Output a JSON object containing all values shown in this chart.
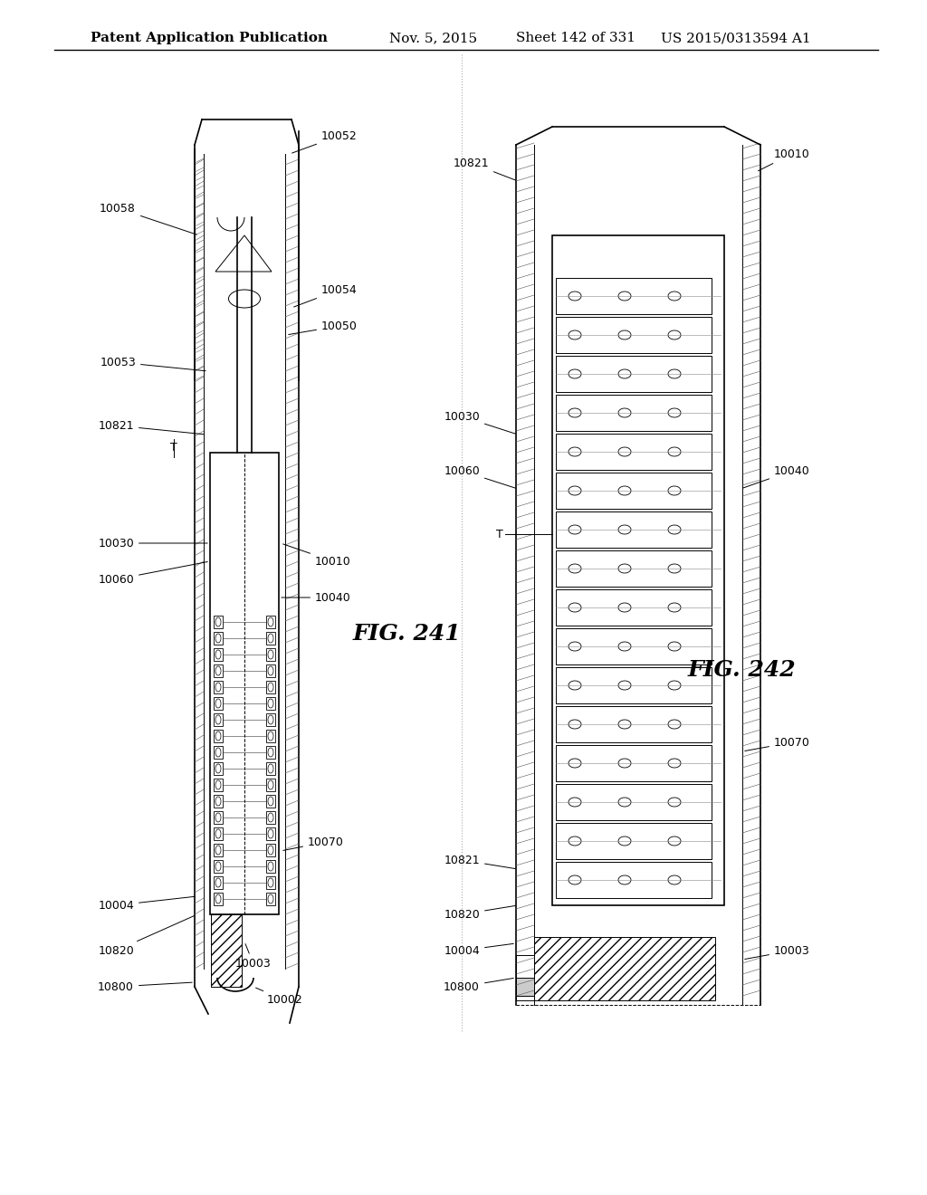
{
  "background_color": "#ffffff",
  "header_text": "Patent Application Publication",
  "header_date": "Nov. 5, 2015",
  "header_sheet": "Sheet 142 of 331",
  "header_patent": "US 2015/0313594 A1",
  "fig241_label": "FIG. 241",
  "fig242_label": "FIG. 242",
  "fig241_labels": [
    "10052",
    "10058",
    "10054",
    "10050",
    "10053",
    "10821",
    "T",
    "10030",
    "10060",
    "10010",
    "10040",
    "10070",
    "10003",
    "10002",
    "10800",
    "10820",
    "10004"
  ],
  "fig242_labels": [
    "10010",
    "10821",
    "10030",
    "10060",
    "10040",
    "10070",
    "10003",
    "10800",
    "10820",
    "10004",
    "10821",
    "10820",
    "10800",
    "10004",
    "10003"
  ],
  "line_color": "#000000",
  "text_color": "#000000",
  "hatch_color": "#000000",
  "font_size_header": 11,
  "font_size_label": 9,
  "font_size_fig": 18
}
